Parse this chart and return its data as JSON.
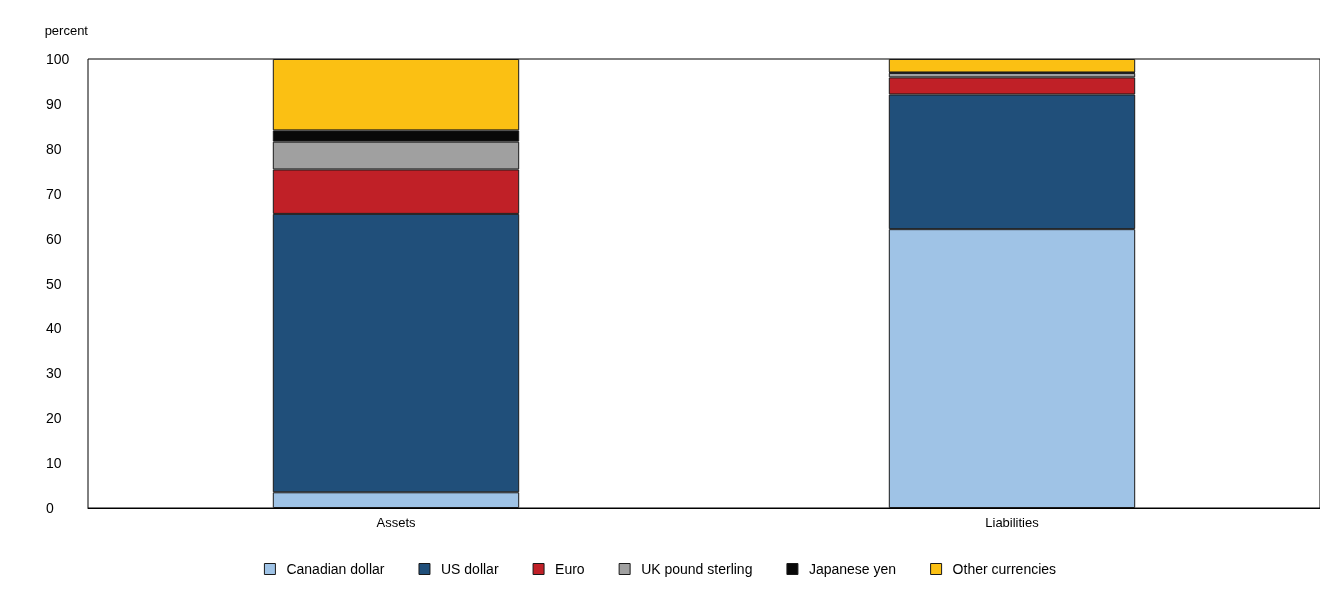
{
  "chart_data": {
    "type": "bar",
    "stacked": true,
    "ylabel": "percent",
    "categories": [
      "Assets",
      "Liabilities"
    ],
    "series": [
      {
        "name": "Canadian dollar",
        "color": "#9fc3e6",
        "values": [
          3.5,
          62.1
        ]
      },
      {
        "name": "US dollar",
        "color": "#204f7a",
        "values": [
          62.0,
          30.0
        ]
      },
      {
        "name": "Euro",
        "color": "#c02027",
        "values": [
          9.9,
          3.8
        ]
      },
      {
        "name": "UK pound sterling",
        "color": "#a0a0a0",
        "values": [
          6.2,
          1.0
        ]
      },
      {
        "name": "Japanese yen",
        "color": "#080808",
        "values": [
          2.5,
          0.1
        ]
      },
      {
        "name": "Other currencies",
        "color": "#fbc013",
        "values": [
          15.9,
          3.0
        ]
      }
    ],
    "ylim": [
      0,
      100
    ],
    "yticks": [
      0,
      10,
      20,
      30,
      40,
      50,
      60,
      70,
      80,
      90,
      100
    ],
    "grid": false,
    "legend": "bottom"
  }
}
